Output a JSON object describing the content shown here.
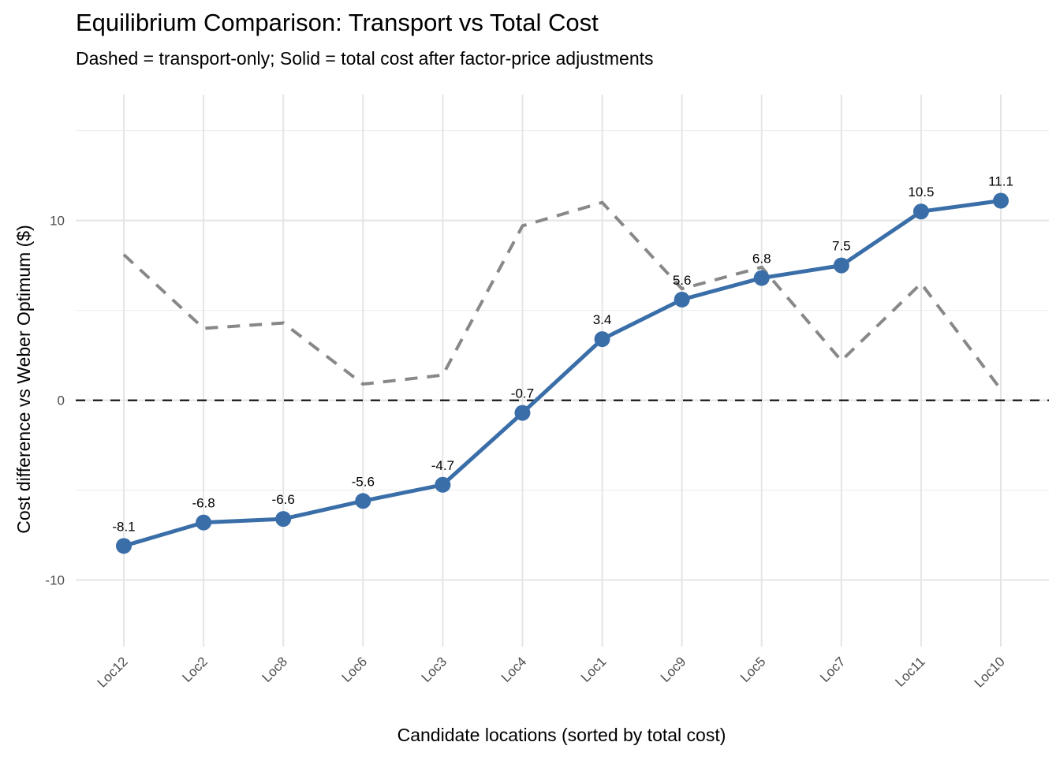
{
  "chart_data": {
    "type": "line",
    "title": "Equilibrium Comparison: Transport vs Total Cost",
    "subtitle": "Dashed = transport-only; Solid = total cost after factor-price adjustments",
    "xlabel": "Candidate locations (sorted by total cost)",
    "ylabel": "Cost difference vs Weber Optimum ($)",
    "categories": [
      "Loc12",
      "Loc2",
      "Loc8",
      "Loc6",
      "Loc3",
      "Loc4",
      "Loc1",
      "Loc9",
      "Loc5",
      "Loc7",
      "Loc11",
      "Loc10"
    ],
    "series": [
      {
        "name": "Transport-only",
        "style": "dashed",
        "color": "#888888",
        "values": [
          8.1,
          4.0,
          4.3,
          0.9,
          1.4,
          9.7,
          11.0,
          6.2,
          7.4,
          2.2,
          6.5,
          0.6
        ]
      },
      {
        "name": "Total cost",
        "style": "solid",
        "color": "#3a6ea8",
        "values": [
          -8.1,
          -6.8,
          -6.6,
          -5.6,
          -4.7,
          -0.7,
          3.4,
          5.6,
          6.8,
          7.5,
          10.5,
          11.1
        ],
        "labels": [
          "-8.1",
          "-6.8",
          "-6.6",
          "-5.6",
          "-4.7",
          "-0.7",
          "3.4",
          "5.6",
          "6.8",
          "7.5",
          "10.5",
          "11.1"
        ]
      }
    ],
    "reference_line": {
      "y": 0,
      "style": "dashed",
      "color": "#000000"
    },
    "yticks": [
      -10,
      0,
      10
    ],
    "ytick_labels": [
      "-10",
      "0",
      "10"
    ],
    "yminor": [
      -5,
      5,
      15
    ],
    "ylim": [
      -13.7,
      17.0
    ],
    "grid": true,
    "legend": "none"
  }
}
